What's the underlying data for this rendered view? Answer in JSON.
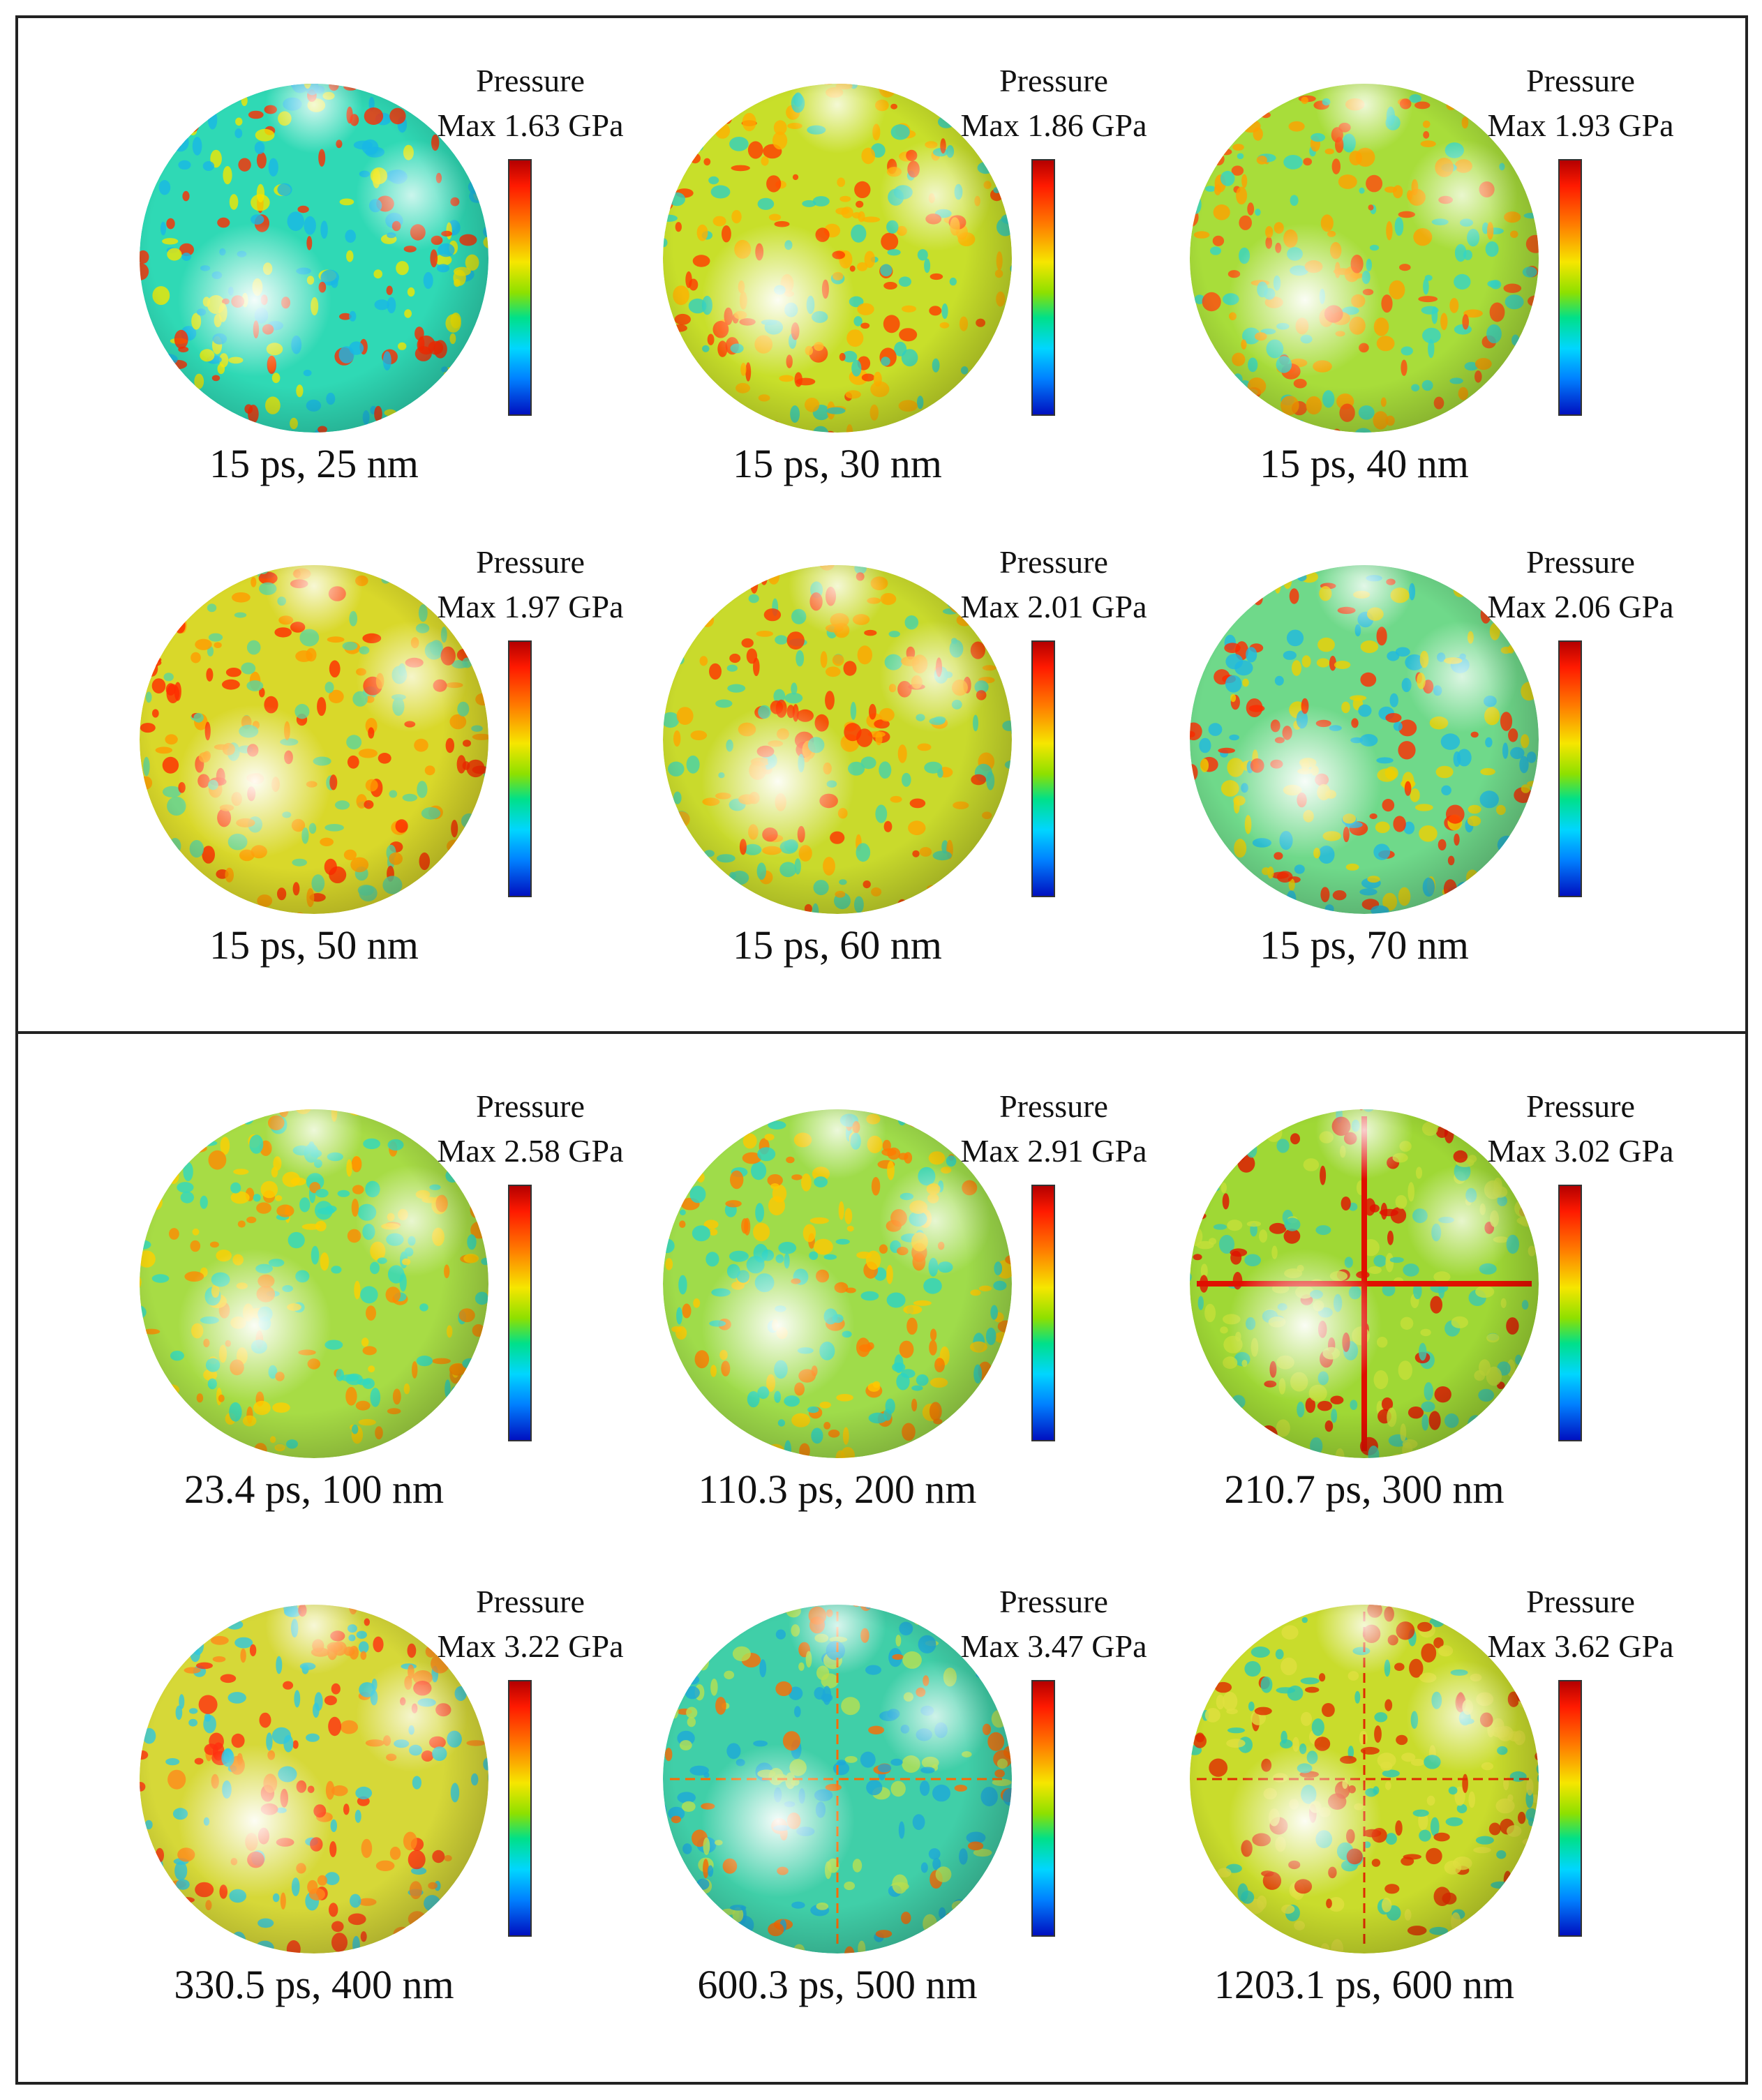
{
  "legend_title": "Pressure",
  "panels": [
    {
      "name": "top",
      "cells": [
        {
          "max": "Max 1.63 GPa",
          "caption": "15 ps, 25 nm",
          "base": "#2fd9b5",
          "spot": "#ff2a00",
          "accent": "#f2e600",
          "cool": "#19b7e6"
        },
        {
          "max": "Max 1.86 GPa",
          "caption": "15 ps, 30 nm",
          "base": "#c8df2a",
          "spot": "#ff3a00",
          "accent": "#ffb000",
          "cool": "#2fd0c0"
        },
        {
          "max": "Max 1.93 GPa",
          "caption": "15 ps, 40 nm",
          "base": "#a8dd3a",
          "spot": "#ff4a10",
          "accent": "#ffa000",
          "cool": "#33d5c7"
        },
        {
          "max": "Max 1.97 GPa",
          "caption": "15 ps, 50 nm",
          "base": "#d9d82a",
          "spot": "#ff2a00",
          "accent": "#ff9b00",
          "cool": "#5bd49c"
        },
        {
          "max": "Max 2.01 GPa",
          "caption": "15 ps, 60 nm",
          "base": "#c9da2c",
          "spot": "#ff3200",
          "accent": "#ffa500",
          "cool": "#45d2ab"
        },
        {
          "max": "Max 2.06 GPa",
          "caption": "15 ps, 70 nm",
          "base": "#6fd98a",
          "spot": "#ff2a00",
          "accent": "#f0d000",
          "cool": "#1fb8e0"
        }
      ]
    },
    {
      "name": "bottom",
      "cells": [
        {
          "max": "Max 2.58 GPa",
          "caption": "23.4 ps, 100 nm",
          "base": "#a7dc45",
          "spot": "#ff8a00",
          "accent": "#ffd000",
          "cool": "#2fd8c0"
        },
        {
          "max": "Max 2.91 GPa",
          "caption": "110.3 ps, 200 nm",
          "base": "#9fdc4a",
          "spot": "#ff7a00",
          "accent": "#ffc800",
          "cool": "#2ad3c5"
        },
        {
          "max": "Max 3.02 GPa",
          "caption": "210.7 ps, 300 nm",
          "base": "#9fd835",
          "spot": "#e01000",
          "accent": "#c5e03a",
          "cool": "#3bc9b0"
        },
        {
          "max": "Max 3.22 GPa",
          "caption": "330.5 ps, 400 nm",
          "base": "#d6d838",
          "spot": "#ff3010",
          "accent": "#ff8a1a",
          "cool": "#2fc7e0"
        },
        {
          "max": "Max 3.47 GPa",
          "caption": "600.3 ps, 500 nm",
          "base": "#40cfa8",
          "spot": "#ff6a00",
          "accent": "#b8e050",
          "cool": "#1da8d8"
        },
        {
          "max": "Max 3.62 GPa",
          "caption": "1203.1 ps, 600 nm",
          "base": "#c9dc2c",
          "spot": "#e02a00",
          "accent": "#e0e040",
          "cool": "#2cc9b6"
        }
      ]
    }
  ]
}
